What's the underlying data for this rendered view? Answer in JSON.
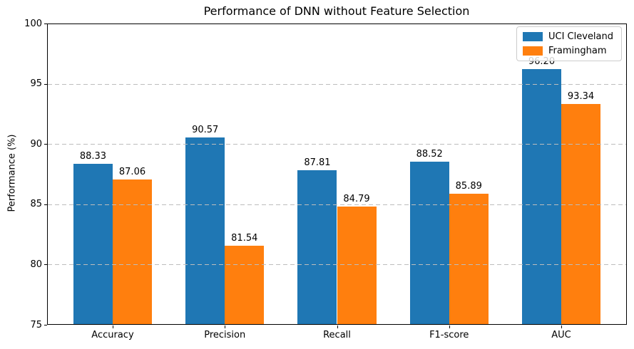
{
  "chart_data": {
    "type": "bar",
    "title": "Performance of DNN without Feature Selection",
    "xlabel": "",
    "ylabel": "Performance (%)",
    "categories": [
      "Accuracy",
      "Precision",
      "Recall",
      "F1-score",
      "AUC"
    ],
    "series": [
      {
        "name": "UCI Cleveland",
        "color": "#1f77b4",
        "values": [
          88.33,
          90.57,
          87.81,
          88.52,
          96.2
        ],
        "labels": [
          "88.33",
          "90.57",
          "87.81",
          "88.52",
          "96.20"
        ]
      },
      {
        "name": "Framingham",
        "color": "#ff7f0e",
        "values": [
          87.06,
          81.54,
          84.79,
          85.89,
          93.34
        ],
        "labels": [
          "87.06",
          "81.54",
          "84.79",
          "85.89",
          "93.34"
        ]
      }
    ],
    "ylim": [
      75,
      100
    ],
    "yticks": [
      75,
      80,
      85,
      90,
      95,
      100
    ],
    "grid": true,
    "grid_style": "dashed",
    "legend_position": "upper right",
    "background_color": "#ffffff",
    "text_color": "#000000"
  }
}
